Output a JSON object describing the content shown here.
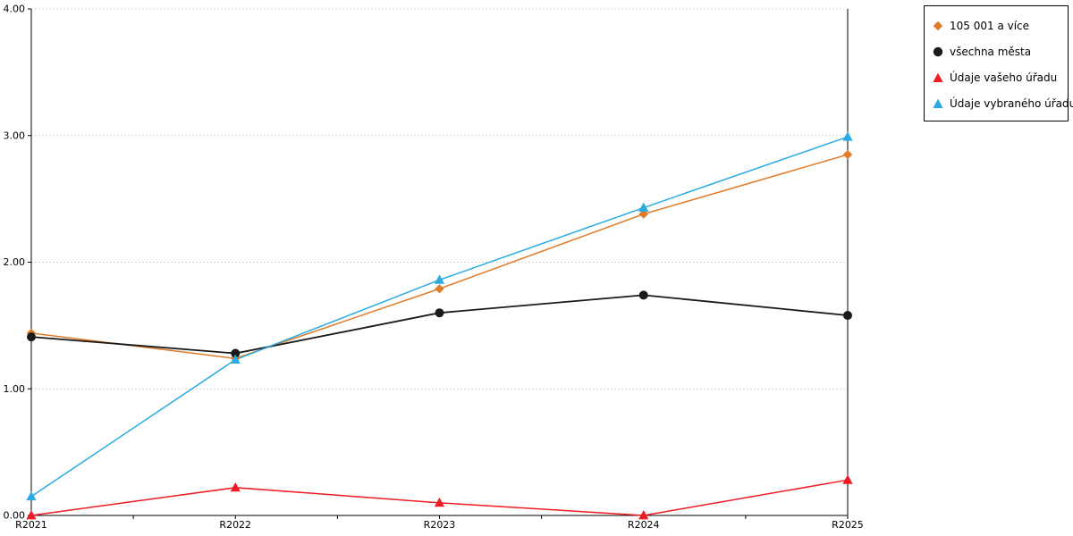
{
  "chart_data": {
    "type": "line",
    "categories": [
      "R2021",
      "R2022",
      "R2023",
      "R2024",
      "R2025"
    ],
    "series": [
      {
        "name": "105 001 a více",
        "color": "#E07C28",
        "marker": "diamond",
        "values": [
          1.44,
          1.24,
          1.79,
          2.38,
          2.85
        ]
      },
      {
        "name": "všechna města",
        "color": "#1A1A1A",
        "marker": "circle",
        "values": [
          1.41,
          1.28,
          1.6,
          1.74,
          1.58
        ]
      },
      {
        "name": "Údaje vašeho úřadu",
        "color": "#EE1C25",
        "marker": "triangle",
        "values": [
          0.0,
          0.22,
          0.1,
          0.0,
          0.28
        ]
      },
      {
        "name": "Údaje vybraného úřadu",
        "color": "#29ABE2",
        "marker": "triangle",
        "values": [
          0.15,
          1.23,
          1.86,
          2.43,
          2.99
        ]
      }
    ],
    "ylim": [
      0,
      4
    ],
    "yticks": [
      0,
      1,
      2,
      3,
      4
    ],
    "ytick_labels": [
      "0.00",
      "1.00",
      "2.00",
      "3.00",
      "4.00"
    ],
    "xlabel": "",
    "ylabel": "",
    "title": "",
    "grid": "horizontal-dotted",
    "legend_position": "top-right",
    "axis_color": "#000000",
    "grid_color": "#c9c9c9"
  }
}
